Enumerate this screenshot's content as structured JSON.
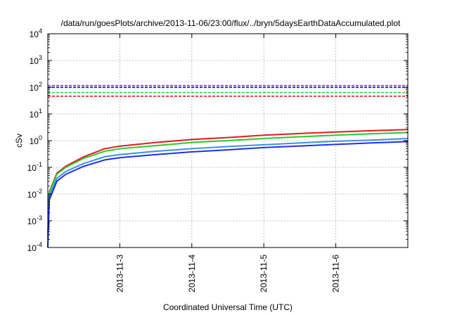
{
  "chart_data": {
    "type": "line",
    "title": "/data/run/goesPlots/archive/2013-11-06/23:00/flux/../bryn/5daysEarthDataAccumulated.plot",
    "xlabel": "Coordinated Universal Time (UTC)",
    "ylabel": "cSv",
    "x_range": [
      "2013-11-02",
      "2013-11-07"
    ],
    "ylim": [
      0.0001,
      10000
    ],
    "yscale": "log",
    "grid": true,
    "x_ticks": [
      "2013-11-3",
      "2013-11-4",
      "2013-11-5",
      "2013-11-6"
    ],
    "x_tick_positions": [
      "2013-11-03",
      "2013-11-04",
      "2013-11-05",
      "2013-11-06"
    ],
    "y_ticks": [
      {
        "base": "10",
        "exp": "-4",
        "value": 0.0001
      },
      {
        "base": "10",
        "exp": "-3",
        "value": 0.001
      },
      {
        "base": "10",
        "exp": "-2",
        "value": 0.01
      },
      {
        "base": "10",
        "exp": "-1",
        "value": 0.1
      },
      {
        "base": "10",
        "exp": "0",
        "value": 1
      },
      {
        "base": "10",
        "exp": "1",
        "value": 10
      },
      {
        "base": "10",
        "exp": "2",
        "value": 100
      },
      {
        "base": "10",
        "exp": "3",
        "value": 1000
      },
      {
        "base": "10",
        "exp": "4",
        "value": 10000
      }
    ],
    "colors": {
      "red": "#e41a1c",
      "green": "#2ec82e",
      "light_blue": "#3a8fe8",
      "blue": "#1f2fe8",
      "purple": "#8a2be2",
      "dark_blue": "#1a1a9a"
    },
    "series": [
      {
        "color": "#e41a1c",
        "style": "solid",
        "points": [
          [
            "2013-11-02",
            0.0003
          ],
          [
            "2013-11-02 00:30",
            0.012
          ],
          [
            "2013-11-02 03:00",
            0.06
          ],
          [
            "2013-11-02 06:00",
            0.11
          ],
          [
            "2013-11-02 12:00",
            0.25
          ],
          [
            "2013-11-02 19:00",
            0.5
          ],
          [
            "2013-11-03",
            0.62
          ],
          [
            "2013-11-03 12:00",
            0.85
          ],
          [
            "2013-11-04",
            1.1
          ],
          [
            "2013-11-04 12:00",
            1.3
          ],
          [
            "2013-11-05",
            1.6
          ],
          [
            "2013-11-05 12:00",
            1.85
          ],
          [
            "2013-11-06",
            2.1
          ],
          [
            "2013-11-06 12:00",
            2.35
          ],
          [
            "2013-11-07",
            2.6
          ]
        ]
      },
      {
        "color": "#2ec82e",
        "style": "solid",
        "points": [
          [
            "2013-11-02",
            0.0003
          ],
          [
            "2013-11-02 00:30",
            0.011
          ],
          [
            "2013-11-02 03:00",
            0.055
          ],
          [
            "2013-11-02 06:00",
            0.1
          ],
          [
            "2013-11-02 12:00",
            0.22
          ],
          [
            "2013-11-02 19:00",
            0.4
          ],
          [
            "2013-11-03",
            0.5
          ],
          [
            "2013-11-03 12:00",
            0.65
          ],
          [
            "2013-11-04",
            0.85
          ],
          [
            "2013-11-04 12:00",
            1.0
          ],
          [
            "2013-11-05",
            1.2
          ],
          [
            "2013-11-05 12:00",
            1.4
          ],
          [
            "2013-11-06",
            1.6
          ],
          [
            "2013-11-06 12:00",
            1.8
          ],
          [
            "2013-11-07",
            2.0
          ]
        ]
      },
      {
        "color": "#3a8fe8",
        "style": "solid",
        "points": [
          [
            "2013-11-02",
            0.0002
          ],
          [
            "2013-11-02 00:30",
            0.008
          ],
          [
            "2013-11-02 03:00",
            0.038
          ],
          [
            "2013-11-02 06:00",
            0.07
          ],
          [
            "2013-11-02 12:00",
            0.14
          ],
          [
            "2013-11-02 19:00",
            0.25
          ],
          [
            "2013-11-03",
            0.3
          ],
          [
            "2013-11-03 12:00",
            0.4
          ],
          [
            "2013-11-04",
            0.5
          ],
          [
            "2013-11-04 12:00",
            0.6
          ],
          [
            "2013-11-05",
            0.7
          ],
          [
            "2013-11-05 12:00",
            0.82
          ],
          [
            "2013-11-06",
            0.95
          ],
          [
            "2013-11-06 12:00",
            1.05
          ],
          [
            "2013-11-07",
            1.2
          ]
        ]
      },
      {
        "color": "#1f2fe8",
        "style": "solid",
        "points": [
          [
            "2013-11-02",
            0.0001
          ],
          [
            "2013-11-02 00:30",
            0.006
          ],
          [
            "2013-11-02 03:00",
            0.03
          ],
          [
            "2013-11-02 06:00",
            0.055
          ],
          [
            "2013-11-02 12:00",
            0.11
          ],
          [
            "2013-11-02 19:00",
            0.19
          ],
          [
            "2013-11-03",
            0.23
          ],
          [
            "2013-11-03 12:00",
            0.3
          ],
          [
            "2013-11-04",
            0.38
          ],
          [
            "2013-11-04 12:00",
            0.45
          ],
          [
            "2013-11-05",
            0.55
          ],
          [
            "2013-11-05 12:00",
            0.63
          ],
          [
            "2013-11-06",
            0.72
          ],
          [
            "2013-11-06 12:00",
            0.82
          ],
          [
            "2013-11-07",
            0.92
          ]
        ]
      },
      {
        "color": "#8a2be2",
        "style": "dashed",
        "constant": 115
      },
      {
        "color": "#1a1a9a",
        "style": "dashed",
        "constant": 98
      },
      {
        "color": "#2ec82e",
        "style": "dashed",
        "constant": 63
      },
      {
        "color": "#e41a1c",
        "style": "dashed",
        "constant": 46
      }
    ]
  }
}
